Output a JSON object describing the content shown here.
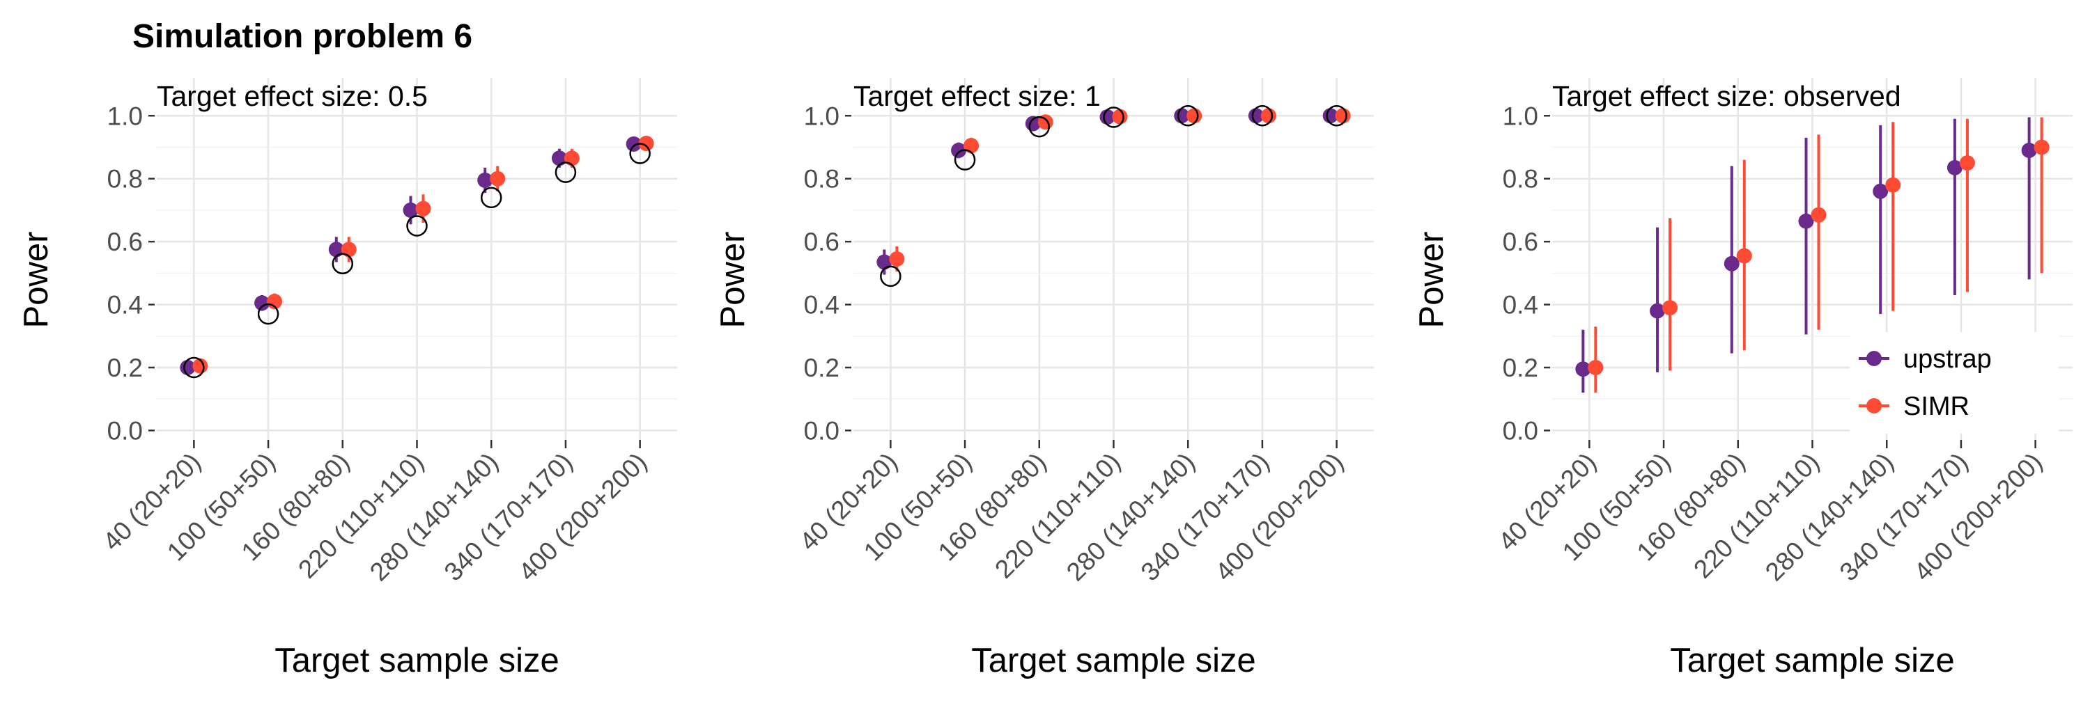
{
  "title": "Simulation problem 6",
  "colors": {
    "upstrap": "#6a2a8c",
    "SIMR": "#ff4b33",
    "reference": "#000000",
    "grid": "#e6e6e6"
  },
  "chart_data": [
    {
      "type": "scatter",
      "subtitle": "Target effect size: 0.5",
      "xlabel": "Target sample size",
      "ylabel": "Power",
      "categories": [
        "40 (20+20)",
        "100 (50+50)",
        "160 (80+80)",
        "220 (110+110)",
        "280 (140+140)",
        "340 (170+170)",
        "400 (200+200)"
      ],
      "ylim": [
        -0.03,
        1.12
      ],
      "yticks": [
        "0.0",
        "0.2",
        "0.4",
        "0.6",
        "0.8",
        "1.0"
      ],
      "grid": true,
      "legend": false,
      "reference_values": [
        0.2,
        0.37,
        0.53,
        0.65,
        0.74,
        0.82,
        0.88
      ],
      "series": [
        {
          "name": "upstrap",
          "values": [
            0.2,
            0.405,
            0.575,
            0.7,
            0.795,
            0.865,
            0.91
          ],
          "lower": [
            0.185,
            0.38,
            0.535,
            0.655,
            0.755,
            0.835,
            0.89
          ],
          "upper": [
            0.215,
            0.43,
            0.615,
            0.745,
            0.835,
            0.895,
            0.93
          ]
        },
        {
          "name": "SIMR",
          "values": [
            0.205,
            0.41,
            0.575,
            0.705,
            0.8,
            0.865,
            0.912
          ],
          "lower": [
            0.19,
            0.385,
            0.535,
            0.66,
            0.76,
            0.835,
            0.89
          ],
          "upper": [
            0.22,
            0.435,
            0.615,
            0.75,
            0.84,
            0.895,
            0.935
          ]
        }
      ]
    },
    {
      "type": "scatter",
      "subtitle": "Target effect size: 1",
      "xlabel": "Target sample size",
      "ylabel": "Power",
      "categories": [
        "40 (20+20)",
        "100 (50+50)",
        "160 (80+80)",
        "220 (110+110)",
        "280 (140+140)",
        "340 (170+170)",
        "400 (200+200)"
      ],
      "ylim": [
        -0.03,
        1.12
      ],
      "yticks": [
        "0.0",
        "0.2",
        "0.4",
        "0.6",
        "0.8",
        "1.0"
      ],
      "grid": true,
      "legend": false,
      "reference_values": [
        0.49,
        0.86,
        0.965,
        0.995,
        1.0,
        1.0,
        1.0
      ],
      "series": [
        {
          "name": "upstrap",
          "values": [
            0.535,
            0.89,
            0.975,
            0.996,
            1.0,
            1.0,
            1.0
          ],
          "lower": [
            0.495,
            0.865,
            0.965,
            0.99,
            0.998,
            0.998,
            0.998
          ],
          "upper": [
            0.575,
            0.915,
            0.985,
            1.0,
            1.0,
            1.0,
            1.0
          ]
        },
        {
          "name": "SIMR",
          "values": [
            0.545,
            0.905,
            0.98,
            0.997,
            1.0,
            1.0,
            1.0
          ],
          "lower": [
            0.505,
            0.88,
            0.97,
            0.992,
            0.998,
            0.998,
            0.998
          ],
          "upper": [
            0.585,
            0.93,
            0.99,
            1.0,
            1.0,
            1.0,
            1.0
          ]
        }
      ]
    },
    {
      "type": "scatter",
      "subtitle": "Target effect size: observed",
      "xlabel": "Target sample size",
      "ylabel": "Power",
      "categories": [
        "40 (20+20)",
        "100 (50+50)",
        "160 (80+80)",
        "220 (110+110)",
        "280 (140+140)",
        "340 (170+170)",
        "400 (200+200)"
      ],
      "ylim": [
        -0.03,
        1.12
      ],
      "yticks": [
        "0.0",
        "0.2",
        "0.4",
        "0.6",
        "0.8",
        "1.0"
      ],
      "grid": true,
      "legend": true,
      "legend_position": "bottom-right",
      "legend_entries": [
        "upstrap",
        "SIMR"
      ],
      "reference_values": [],
      "series": [
        {
          "name": "upstrap",
          "values": [
            0.195,
            0.38,
            0.53,
            0.665,
            0.76,
            0.835,
            0.89
          ],
          "lower": [
            0.12,
            0.185,
            0.245,
            0.305,
            0.37,
            0.43,
            0.48
          ],
          "upper": [
            0.32,
            0.645,
            0.84,
            0.93,
            0.97,
            0.99,
            0.995
          ]
        },
        {
          "name": "SIMR",
          "values": [
            0.2,
            0.39,
            0.555,
            0.685,
            0.78,
            0.85,
            0.9
          ],
          "lower": [
            0.12,
            0.19,
            0.255,
            0.32,
            0.38,
            0.44,
            0.5
          ],
          "upper": [
            0.33,
            0.675,
            0.86,
            0.94,
            0.98,
            0.99,
            0.995
          ]
        }
      ]
    }
  ]
}
